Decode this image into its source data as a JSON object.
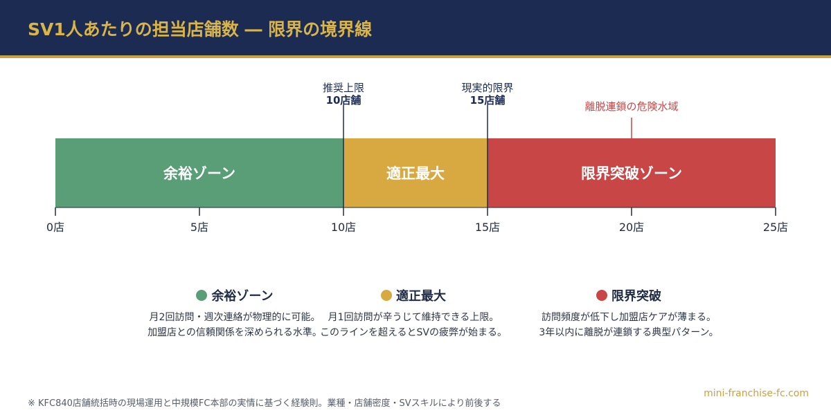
{
  "header": {
    "title": "SV1人あたりの担当店舗数 ― 限界の境界線"
  },
  "colors": {
    "header_bg": "#1b2b52",
    "accent": "#c9a042",
    "green": "#5a9e78",
    "amber": "#d8a841",
    "red": "#c84646",
    "danger_text": "#c84646"
  },
  "chart_data": {
    "type": "bar",
    "subtype": "horizontal-range-band",
    "x_unit": "店",
    "xlim": [
      0,
      25
    ],
    "ticks": [
      0,
      5,
      10,
      15,
      20,
      25
    ],
    "tick_labels": [
      "0店",
      "5店",
      "10店",
      "15店",
      "20店",
      "25店"
    ],
    "segments": [
      {
        "label": "余裕ゾーン",
        "start": 0,
        "end": 10,
        "color": "#5a9e78"
      },
      {
        "label": "適正最大",
        "start": 10,
        "end": 15,
        "color": "#d8a841"
      },
      {
        "label": "限界突破ゾーン",
        "start": 15,
        "end": 25,
        "color": "#c84646"
      }
    ],
    "markers": [
      {
        "x": 10,
        "line1": "推奨上限",
        "line2": "10店舗"
      },
      {
        "x": 15,
        "line1": "現実的限界",
        "line2": "15店舗"
      },
      {
        "x": 20,
        "line1": "離脱連鎖の危険水域",
        "line2": ""
      }
    ]
  },
  "legend": [
    {
      "title": "余裕ゾーン",
      "color": "#5a9e78",
      "line1": "月2回訪問・週次連絡が物理的に可能。",
      "line2": "加盟店との信頼関係を深められる水準。"
    },
    {
      "title": "適正最大",
      "color": "#d8a841",
      "line1": "月1回訪問が辛うじて維持できる上限。",
      "line2": "このラインを超えるとSVの疲弊が始まる。"
    },
    {
      "title": "限界突破",
      "color": "#c84646",
      "line1": "訪問頻度が低下し加盟店ケアが薄まる。",
      "line2": "3年以内に離脱が連鎖する典型パターン。"
    }
  ],
  "footer": {
    "note": "※ KFC840店舗統括時の現場運用と中規模FC本部の実情に基づく経験則。業種・店舗密度・SVスキルにより前後する",
    "site": "mini-franchise-fc.com"
  }
}
